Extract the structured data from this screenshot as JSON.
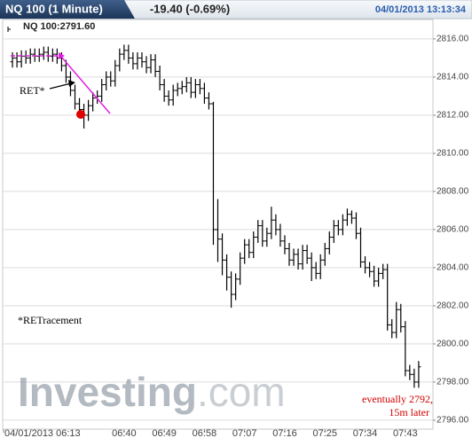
{
  "chart_data": {
    "type": "ohlc",
    "title": "NQ 100 (1 Minute)",
    "change": "-19.40 (-0.69%)",
    "timestamp": "04/01/2013 13:13:34",
    "legend": "NQ 100:2791.60",
    "annotations": [
      "RET*",
      "*RETracement",
      "eventually 2792,",
      "15m later"
    ],
    "watermark": [
      "Investing",
      ".com"
    ],
    "color": "#000000",
    "grid": true,
    "xlim": [
      372.8,
      469.2
    ],
    "xticks": [
      {
        "value": 373,
        "label": "04/01/2013 06:13"
      },
      {
        "value": 400,
        "label": "06:40"
      },
      {
        "value": 409,
        "label": "06:49"
      },
      {
        "value": 418,
        "label": "06:58"
      },
      {
        "value": 427,
        "label": "07:07"
      },
      {
        "value": 436,
        "label": "07:16"
      },
      {
        "value": 445,
        "label": "07:25"
      },
      {
        "value": 454,
        "label": "07:34"
      },
      {
        "value": 463,
        "label": "07:43"
      }
    ],
    "ylim": [
      2795.53,
      2817.02
    ],
    "yticks": [
      {
        "value": 2796,
        "label": "2796.00"
      },
      {
        "value": 2798,
        "label": "2798.00"
      },
      {
        "value": 2800,
        "label": "2800.00"
      },
      {
        "value": 2802,
        "label": "2802.00"
      },
      {
        "value": 2804,
        "label": "2804.00"
      },
      {
        "value": 2806,
        "label": "2806.00"
      },
      {
        "value": 2808,
        "label": "2808.00"
      },
      {
        "value": 2810,
        "label": "2810.00"
      },
      {
        "value": 2812,
        "label": "2812.00"
      },
      {
        "value": 2814,
        "label": "2814.00"
      },
      {
        "value": 2816,
        "label": "2816.00"
      }
    ],
    "x": [
      375,
      376,
      377,
      378,
      379,
      380,
      381,
      382,
      383,
      384,
      385,
      386,
      387,
      388,
      389,
      390,
      391,
      392,
      393,
      394,
      395,
      396,
      397,
      398,
      399,
      400,
      401,
      402,
      403,
      404,
      405,
      406,
      407,
      408,
      409,
      410,
      411,
      412,
      413,
      414,
      415,
      416,
      417,
      418,
      419,
      420,
      421,
      422,
      423,
      424,
      425,
      426,
      427,
      428,
      429,
      430,
      431,
      432,
      433,
      434,
      435,
      436,
      437,
      438,
      439,
      440,
      441,
      442,
      443,
      444,
      445,
      446,
      447,
      448,
      449,
      450,
      451,
      452,
      453,
      454,
      455,
      456,
      457,
      458,
      459,
      460,
      461,
      462,
      463,
      464,
      465,
      466
    ],
    "open": [
      2814.8,
      2815.0,
      2814.8,
      2815.1,
      2815.0,
      2815.2,
      2815.1,
      2815.2,
      2815.3,
      2815.1,
      2815.2,
      2815.0,
      2814.6,
      2814.0,
      2813.3,
      2812.6,
      2812.3,
      2812.0,
      2812.5,
      2812.9,
      2813.0,
      2813.6,
      2814.0,
      2813.8,
      2814.6,
      2815.2,
      2815.4,
      2815.0,
      2814.7,
      2815.0,
      2814.8,
      2814.5,
      2814.9,
      2814.3,
      2813.6,
      2813.0,
      2812.8,
      2813.3,
      2813.4,
      2813.5,
      2813.7,
      2813.2,
      2813.6,
      2813.4,
      2812.9,
      2812.6,
      2806.0,
      2805.5,
      2804.4,
      2803.5,
      2802.6,
      2803.4,
      2804.5,
      2805.2,
      2804.8,
      2805.6,
      2806.2,
      2805.4,
      2805.8,
      2806.5,
      2806.0,
      2805.4,
      2805.0,
      2804.4,
      2804.7,
      2804.2,
      2804.9,
      2804.5,
      2804.0,
      2803.7,
      2804.4,
      2805.0,
      2805.6,
      2806.2,
      2806.0,
      2806.5,
      2806.8,
      2806.6,
      2805.8,
      2804.3,
      2804.0,
      2803.8,
      2803.3,
      2803.7,
      2803.9,
      2801.0,
      2800.6,
      2801.8,
      2800.9,
      2798.6,
      2798.4,
      2798.0
    ],
    "high": [
      2815.3,
      2815.3,
      2815.4,
      2815.4,
      2815.5,
      2815.5,
      2815.5,
      2815.6,
      2815.6,
      2815.5,
      2815.5,
      2815.3,
      2814.9,
      2814.3,
      2813.6,
      2812.9,
      2812.6,
      2812.8,
      2813.2,
      2813.3,
      2813.9,
      2814.3,
      2814.3,
      2814.9,
      2815.5,
      2815.7,
      2815.7,
      2815.3,
      2815.3,
      2815.3,
      2815.1,
      2815.2,
      2815.2,
      2814.6,
      2813.9,
      2813.3,
      2813.6,
      2813.7,
      2813.8,
      2814.0,
      2814.0,
      2813.9,
      2813.9,
      2813.7,
      2813.2,
      2812.7,
      2807.6,
      2805.8,
      2804.7,
      2803.8,
      2803.7,
      2804.8,
      2805.5,
      2805.5,
      2805.9,
      2806.5,
      2806.5,
      2806.1,
      2807.2,
      2806.8,
      2806.3,
      2805.7,
      2805.3,
      2805.0,
      2805.0,
      2805.2,
      2805.2,
      2804.8,
      2804.3,
      2804.7,
      2805.3,
      2805.9,
      2806.5,
      2806.5,
      2806.8,
      2807.1,
      2807.0,
      2806.9,
      2806.1,
      2804.6,
      2804.3,
      2804.1,
      2804.0,
      2804.2,
      2804.2,
      2801.3,
      2802.2,
      2802.1,
      2801.2,
      2798.9,
      2798.7,
      2799.1
    ],
    "low": [
      2814.5,
      2814.5,
      2814.5,
      2814.7,
      2814.7,
      2814.8,
      2814.8,
      2814.9,
      2814.8,
      2814.8,
      2814.7,
      2814.3,
      2813.7,
      2813.0,
      2812.3,
      2812.0,
      2811.3,
      2811.7,
      2812.2,
      2812.6,
      2812.7,
      2813.3,
      2813.5,
      2813.5,
      2814.3,
      2814.9,
      2814.7,
      2814.4,
      2814.4,
      2814.5,
      2814.2,
      2814.2,
      2814.0,
      2813.3,
      2812.7,
      2812.5,
      2812.5,
      2813.0,
      2813.1,
      2813.2,
      2812.9,
      2812.9,
      2813.1,
      2812.6,
      2812.3,
      2805.2,
      2804.3,
      2803.6,
      2802.8,
      2801.9,
      2802.3,
      2803.1,
      2804.2,
      2804.5,
      2804.5,
      2805.3,
      2805.1,
      2805.1,
      2805.5,
      2805.7,
      2805.1,
      2804.7,
      2804.1,
      2804.1,
      2803.9,
      2803.9,
      2804.2,
      2803.3,
      2803.4,
      2803.4,
      2804.1,
      2804.7,
      2805.3,
      2805.7,
      2805.7,
      2806.2,
      2806.3,
      2805.5,
      2804.0,
      2803.7,
      2803.5,
      2803.0,
      2803.0,
      2803.4,
      2800.7,
      2800.3,
      2800.3,
      2800.6,
      2798.3,
      2798.1,
      2797.7,
      2797.7
    ],
    "close": [
      2815.0,
      2814.8,
      2815.1,
      2815.0,
      2815.2,
      2815.1,
      2815.2,
      2815.3,
      2815.1,
      2815.2,
      2815.0,
      2814.6,
      2814.0,
      2813.3,
      2812.6,
      2812.3,
      2812.0,
      2812.5,
      2812.9,
      2813.0,
      2813.6,
      2814.0,
      2813.8,
      2814.6,
      2815.2,
      2815.4,
      2815.0,
      2814.7,
      2815.0,
      2814.8,
      2814.5,
      2814.9,
      2814.3,
      2813.6,
      2813.0,
      2812.8,
      2813.3,
      2813.4,
      2813.5,
      2813.7,
      2813.2,
      2813.6,
      2813.4,
      2812.9,
      2812.6,
      2806.0,
      2805.5,
      2804.4,
      2803.5,
      2802.6,
      2803.4,
      2804.5,
      2805.2,
      2804.8,
      2805.6,
      2806.2,
      2805.4,
      2805.8,
      2806.5,
      2806.0,
      2805.4,
      2805.0,
      2804.4,
      2804.7,
      2804.2,
      2804.9,
      2804.5,
      2804.0,
      2803.7,
      2804.4,
      2805.0,
      2805.6,
      2806.2,
      2806.0,
      2806.5,
      2806.8,
      2806.6,
      2805.8,
      2804.3,
      2804.0,
      2803.8,
      2803.3,
      2803.7,
      2803.9,
      2801.0,
      2800.6,
      2801.8,
      2800.9,
      2798.6,
      2798.4,
      2798.0,
      2798.8
    ]
  }
}
